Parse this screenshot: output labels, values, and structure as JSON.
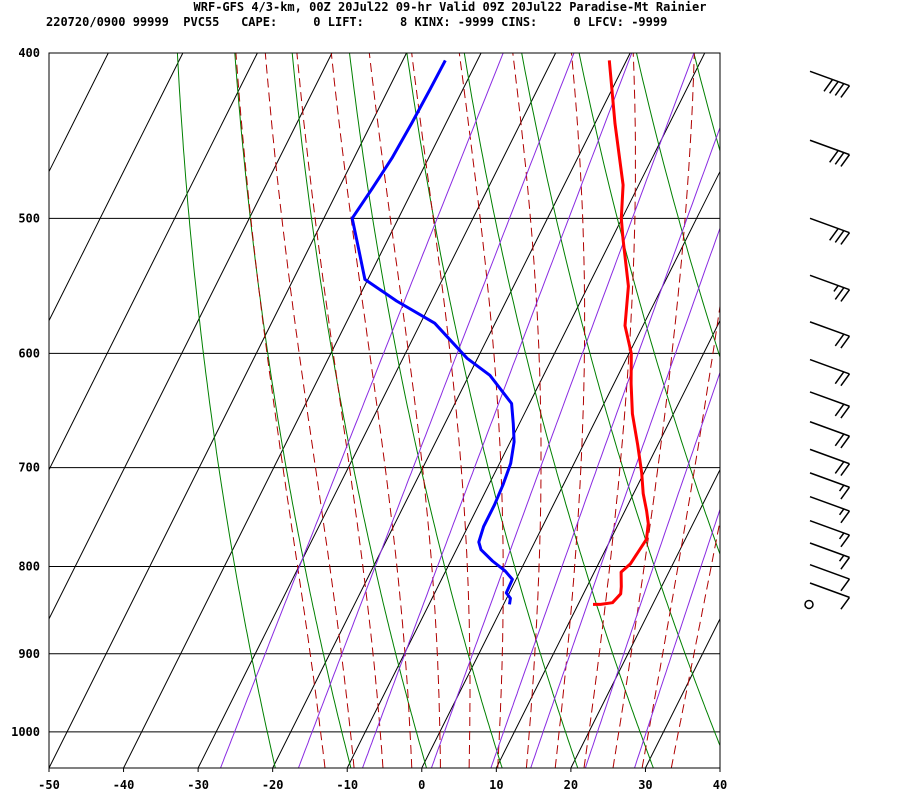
{
  "header": {
    "line1": "WRF-GFS 4/3-km, 00Z 20Jul22 09-hr Valid 09Z 20Jul22 Paradise-Mt Rainier",
    "line2": "220720/0900 99999  PVC55   CAPE:     0 LIFT:     8 KINX: -9999 CINS:     0 LFCV: -9999"
  },
  "chart_data": {
    "type": "line",
    "title": "WRF-GFS 4/3-km, 00Z 20Jul22 09-hr Valid 09Z 20Jul22 Paradise-Mt Rainier",
    "xlabel": "",
    "ylabel": "",
    "x_axis": {
      "ticks": [
        -50,
        -40,
        -30,
        -20,
        -10,
        0,
        10,
        20,
        30,
        40
      ],
      "range": [
        -50,
        40
      ]
    },
    "y_axis": {
      "ticks": [
        400,
        500,
        600,
        700,
        800,
        900,
        1000
      ],
      "range": [
        400,
        1050
      ],
      "scale": "log",
      "inverted": true
    },
    "grid": true,
    "series": [
      {
        "color": "#ff0000",
        "points": [
          [
            -22.3,
            404
          ],
          [
            -17.3,
            440
          ],
          [
            -12.1,
            478
          ],
          [
            -10.1,
            500
          ],
          [
            -8.5,
            514
          ],
          [
            -4.6,
            548
          ],
          [
            -2.4,
            578
          ],
          [
            0.3,
            600
          ],
          [
            2.3,
            625
          ],
          [
            4.5,
            651
          ],
          [
            7.3,
            679
          ],
          [
            9.7,
            705
          ],
          [
            11.3,
            725
          ],
          [
            12.9,
            742
          ],
          [
            14.0,
            755
          ],
          [
            14.8,
            771
          ],
          [
            14.3,
            797
          ],
          [
            13.6,
            806
          ],
          [
            14.6,
            822
          ],
          [
            15.0,
            830
          ],
          [
            14.5,
            840
          ],
          [
            13.0,
            842
          ],
          [
            12.0,
            842
          ]
        ]
      },
      {
        "color": "#0000ff",
        "points": [
          [
            -44.3,
            404
          ],
          [
            -44.4,
            420
          ],
          [
            -44.6,
            440
          ],
          [
            -44.9,
            461
          ],
          [
            -45.5,
            480
          ],
          [
            -46.2,
            500
          ],
          [
            -43.3,
            521
          ],
          [
            -40.4,
            543
          ],
          [
            -34.7,
            559
          ],
          [
            -28.1,
            576
          ],
          [
            -21.4,
            604
          ],
          [
            -17.2,
            618
          ],
          [
            -12.4,
            642
          ],
          [
            -10.8,
            660
          ],
          [
            -9.5,
            676
          ],
          [
            -8.5,
            696
          ],
          [
            -8.1,
            716
          ],
          [
            -7.9,
            736
          ],
          [
            -7.9,
            758
          ],
          [
            -7.5,
            774
          ],
          [
            -6.7,
            782
          ],
          [
            -4.4,
            794
          ],
          [
            -2.0,
            805
          ],
          [
            -0.5,
            814
          ],
          [
            -0.4,
            829
          ],
          [
            0.5,
            835
          ],
          [
            0.8,
            842
          ]
        ]
      }
    ],
    "reference_lines": {
      "isotherms_C": [
        -90,
        -80,
        -70,
        -60,
        -50,
        -40,
        -30,
        -20,
        -10,
        0,
        10,
        20,
        30,
        40
      ],
      "dry_adiabats_K": [
        250,
        260,
        270,
        280,
        290,
        300,
        310,
        320,
        330,
        340,
        350,
        360,
        370,
        380,
        390,
        400
      ],
      "moist_adiabats_C": [
        -16,
        -12,
        -8,
        -4,
        0,
        4,
        8,
        12,
        16,
        20,
        24,
        28,
        32
      ],
      "mixing_ratio_gkg": [
        0.4,
        1,
        2,
        4,
        7,
        10,
        16,
        24
      ]
    },
    "wind_barbs": {
      "calm_at_hPa": 842,
      "barbs": [
        {
          "p": 410,
          "dir": 290,
          "speed_kt": 40
        },
        {
          "p": 450,
          "dir": 290,
          "speed_kt": 30
        },
        {
          "p": 500,
          "dir": 290,
          "speed_kt": 30
        },
        {
          "p": 540,
          "dir": 290,
          "speed_kt": 25
        },
        {
          "p": 575,
          "dir": 290,
          "speed_kt": 20
        },
        {
          "p": 605,
          "dir": 290,
          "speed_kt": 20
        },
        {
          "p": 632,
          "dir": 290,
          "speed_kt": 20
        },
        {
          "p": 658,
          "dir": 290,
          "speed_kt": 20
        },
        {
          "p": 683,
          "dir": 290,
          "speed_kt": 20
        },
        {
          "p": 705,
          "dir": 290,
          "speed_kt": 15
        },
        {
          "p": 728,
          "dir": 290,
          "speed_kt": 15
        },
        {
          "p": 752,
          "dir": 290,
          "speed_kt": 15
        },
        {
          "p": 775,
          "dir": 290,
          "speed_kt": 15
        },
        {
          "p": 798,
          "dir": 290,
          "speed_kt": 10
        },
        {
          "p": 818,
          "dir": 290,
          "speed_kt": 10
        }
      ]
    }
  }
}
